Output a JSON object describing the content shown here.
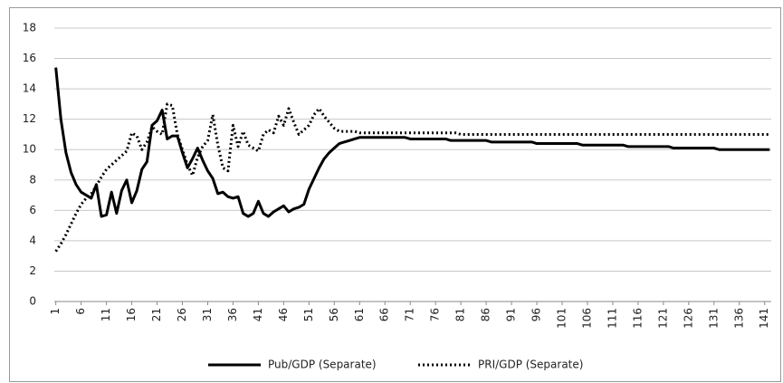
{
  "chart_data": {
    "type": "line",
    "x": [
      1,
      2,
      3,
      4,
      5,
      6,
      7,
      8,
      9,
      10,
      11,
      12,
      13,
      14,
      15,
      16,
      17,
      18,
      19,
      20,
      21,
      22,
      23,
      24,
      25,
      26,
      27,
      28,
      29,
      30,
      31,
      32,
      33,
      34,
      35,
      36,
      37,
      38,
      39,
      40,
      41,
      42,
      43,
      44,
      45,
      46,
      47,
      48,
      49,
      50,
      51,
      52,
      53,
      54,
      55,
      56,
      57,
      58,
      59,
      60,
      61,
      62,
      63,
      64,
      65,
      66,
      67,
      68,
      69,
      70,
      71,
      72,
      73,
      74,
      75,
      76,
      77,
      78,
      79,
      80,
      81,
      82,
      83,
      84,
      85,
      86,
      87,
      88,
      89,
      90,
      91,
      92,
      93,
      94,
      95,
      96,
      97,
      98,
      99,
      100,
      101,
      102,
      103,
      104,
      105,
      106,
      107,
      108,
      109,
      110,
      111,
      112,
      113,
      114,
      115,
      116,
      117,
      118,
      119,
      120,
      121,
      122,
      123,
      124,
      125,
      126,
      127,
      128,
      129,
      130,
      131,
      132,
      133,
      134,
      135,
      136,
      137,
      138,
      139,
      140,
      141,
      142
    ],
    "series": [
      {
        "name": "Pub/GDP (Separate)",
        "color": "#000000",
        "style": "solid",
        "values": [
          15.4,
          12,
          9.8,
          8.5,
          7.7,
          7.2,
          7,
          6.8,
          7.7,
          5.6,
          5.7,
          7.2,
          5.8,
          7.3,
          8,
          6.5,
          7.3,
          8.7,
          9.2,
          11.6,
          11.9,
          12.6,
          10.7,
          10.9,
          10.9,
          9.8,
          8.8,
          9.4,
          10.1,
          9.3,
          8.6,
          8.1,
          7.1,
          7.2,
          6.9,
          6.8,
          6.9,
          5.8,
          5.6,
          5.8,
          6.6,
          5.8,
          5.6,
          5.9,
          6.1,
          6.3,
          5.9,
          6.1,
          6.2,
          6.4,
          7.4,
          8.1,
          8.8,
          9.4,
          9.8,
          10.1,
          10.4,
          10.5,
          10.6,
          10.7,
          10.8,
          10.8,
          10.8,
          10.8,
          10.8,
          10.8,
          10.8,
          10.8,
          10.8,
          10.8,
          10.7,
          10.7,
          10.7,
          10.7,
          10.7,
          10.7,
          10.7,
          10.7,
          10.6,
          10.6,
          10.6,
          10.6,
          10.6,
          10.6,
          10.6,
          10.6,
          10.5,
          10.5,
          10.5,
          10.5,
          10.5,
          10.5,
          10.5,
          10.5,
          10.5,
          10.4,
          10.4,
          10.4,
          10.4,
          10.4,
          10.4,
          10.4,
          10.4,
          10.4,
          10.3,
          10.3,
          10.3,
          10.3,
          10.3,
          10.3,
          10.3,
          10.3,
          10.3,
          10.2,
          10.2,
          10.2,
          10.2,
          10.2,
          10.2,
          10.2,
          10.2,
          10.2,
          10.1,
          10.1,
          10.1,
          10.1,
          10.1,
          10.1,
          10.1,
          10.1,
          10.1,
          10,
          10,
          10,
          10,
          10,
          10,
          10,
          10,
          10,
          10,
          10
        ]
      },
      {
        "name": "PRI/GDP (Separate)",
        "color": "#000000",
        "style": "dotted",
        "values": [
          3.3,
          3.8,
          4.4,
          5.1,
          5.8,
          6.4,
          6.8,
          7.1,
          7.6,
          8.2,
          8.7,
          9,
          9.3,
          9.6,
          9.9,
          11.1,
          10.9,
          10,
          10.5,
          11.5,
          11.2,
          11,
          13,
          12.9,
          11,
          10,
          9,
          8.3,
          9.5,
          10.2,
          10.6,
          12.3,
          10.3,
          8.8,
          8.6,
          11.6,
          10.2,
          11.2,
          10.3,
          10.1,
          9.9,
          11,
          11.3,
          11.1,
          12.2,
          11.6,
          12.7,
          11.8,
          11,
          11.3,
          11.6,
          12.3,
          12.7,
          12.2,
          11.8,
          11.4,
          11.2,
          11.2,
          11.2,
          11.2,
          11.1,
          11.1,
          11.1,
          11.1,
          11.1,
          11.1,
          11.1,
          11.1,
          11.1,
          11.1,
          11.1,
          11.1,
          11.1,
          11.1,
          11.1,
          11.1,
          11.1,
          11.1,
          11.1,
          11.1,
          11,
          11,
          11,
          11,
          11,
          11,
          11,
          11,
          11,
          11,
          11,
          11,
          11,
          11,
          11,
          11,
          11,
          11,
          11,
          11,
          11,
          11,
          11,
          11,
          11,
          11,
          11,
          11,
          11,
          11,
          11,
          11,
          11,
          11,
          11,
          11,
          11,
          11,
          11,
          11,
          11,
          11,
          11,
          11,
          11,
          11,
          11,
          11,
          11,
          11,
          11,
          11,
          11,
          11,
          11,
          11,
          11,
          11,
          11,
          11,
          11,
          11
        ]
      }
    ],
    "xlim": [
      0.7,
      142.3
    ],
    "xticks": [
      1,
      6,
      11,
      16,
      21,
      26,
      31,
      36,
      41,
      46,
      51,
      56,
      61,
      66,
      71,
      76,
      81,
      86,
      91,
      96,
      101,
      106,
      111,
      116,
      121,
      126,
      131,
      136,
      141
    ],
    "ylim": [
      0,
      18
    ],
    "yticks": [
      0,
      2,
      4,
      6,
      8,
      10,
      12,
      14,
      16,
      18
    ],
    "grid": true,
    "legend": "bottom"
  }
}
